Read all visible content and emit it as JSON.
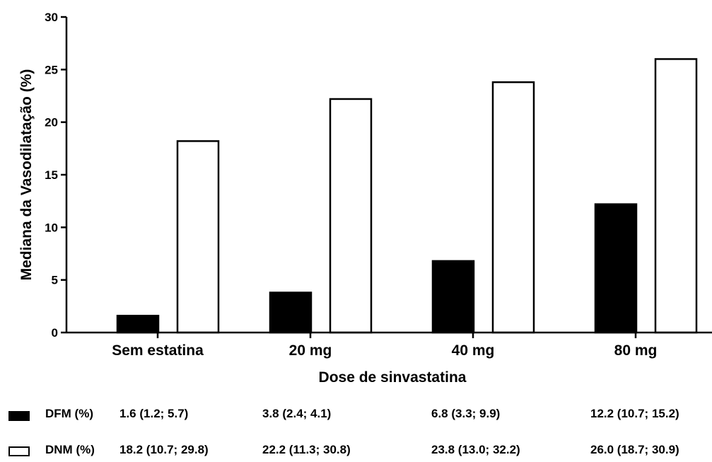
{
  "chart_data": {
    "type": "bar",
    "categories": [
      "Sem estatina",
      "20 mg",
      "40 mg",
      "80 mg"
    ],
    "series": [
      {
        "name": "DFM (%)",
        "values": [
          1.6,
          3.8,
          6.8,
          12.2
        ],
        "color": "#000000",
        "fill": "filled"
      },
      {
        "name": "DNM (%)",
        "values": [
          18.2,
          22.2,
          23.8,
          26.0
        ],
        "color": "#ffffff",
        "fill": "open"
      }
    ],
    "title": "",
    "xlabel": "Dose de sinvastatina",
    "ylabel": "Mediana da Vasodilatação (%)",
    "ylim": [
      0,
      30
    ],
    "yticks": [
      0,
      5,
      10,
      15,
      20,
      25,
      30
    ],
    "grid": false
  },
  "legend_table": {
    "rows": [
      {
        "label": "DFM (%)",
        "swatch": "filled",
        "values": [
          "1.6 (1.2; 5.7)",
          "3.8 (2.4; 4.1)",
          "6.8 (3.3; 9.9)",
          "12.2 (10.7; 15.2)"
        ]
      },
      {
        "label": "DNM (%)",
        "swatch": "open",
        "values": [
          "18.2 (10.7; 29.8)",
          "22.2 (11.3; 30.8)",
          "23.8 (13.0; 32.2)",
          "26.0 (18.7; 30.9)"
        ]
      }
    ]
  }
}
